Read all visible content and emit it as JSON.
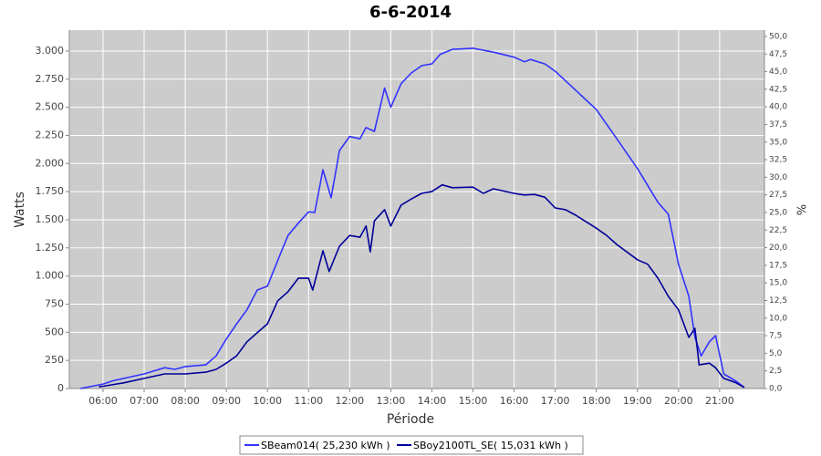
{
  "chart_data": {
    "type": "line",
    "title": "6-6-2014",
    "x_label": "Période",
    "y_label": "Watts",
    "y2_label": "%",
    "xlim": [
      5.18,
      22.09
    ],
    "xticks": [
      {
        "value": 6,
        "label": "06:00"
      },
      {
        "value": 7,
        "label": "07:00"
      },
      {
        "value": 8,
        "label": "08:00"
      },
      {
        "value": 9,
        "label": "09:00"
      },
      {
        "value": 10,
        "label": "10:00"
      },
      {
        "value": 11,
        "label": "11:00"
      },
      {
        "value": 12,
        "label": "12:00"
      },
      {
        "value": 13,
        "label": "13:00"
      },
      {
        "value": 14,
        "label": "14:00"
      },
      {
        "value": 15,
        "label": "15:00"
      },
      {
        "value": 16,
        "label": "16:00"
      },
      {
        "value": 17,
        "label": "17:00"
      },
      {
        "value": 18,
        "label": "18:00"
      },
      {
        "value": 19,
        "label": "19:00"
      },
      {
        "value": 20,
        "label": "20:00"
      },
      {
        "value": 21,
        "label": "21:00"
      }
    ],
    "ylim": [
      0,
      3186
    ],
    "yticks": [
      0,
      250,
      500,
      750,
      {
        "value": 1000,
        "label": "1.000"
      },
      {
        "value": 1250,
        "label": "1.250"
      },
      {
        "value": 1500,
        "label": "1.500"
      },
      {
        "value": 1750,
        "label": "1.750"
      },
      {
        "value": 2000,
        "label": "2.000"
      },
      {
        "value": 2250,
        "label": "2.250"
      },
      {
        "value": 2500,
        "label": "2.500"
      },
      {
        "value": 2750,
        "label": "2.750"
      },
      {
        "value": 3000,
        "label": "3.000"
      }
    ],
    "y2lim": [
      0,
      50.9
    ],
    "y2ticks": [
      {
        "value": 0,
        "label": "0,0"
      },
      {
        "value": 2.5,
        "label": "2,5"
      },
      {
        "value": 5,
        "label": "5,0"
      },
      {
        "value": 7.5,
        "label": "7,5"
      },
      {
        "value": 10,
        "label": "10,0"
      },
      {
        "value": 12.5,
        "label": "12,5"
      },
      {
        "value": 15,
        "label": "15,0"
      },
      {
        "value": 17.5,
        "label": "17,5"
      },
      {
        "value": 20,
        "label": "20,0"
      },
      {
        "value": 22.5,
        "label": "22,5"
      },
      {
        "value": 25,
        "label": "25,0"
      },
      {
        "value": 27.5,
        "label": "27,5"
      },
      {
        "value": 30,
        "label": "30,0"
      },
      {
        "value": 32.5,
        "label": "32,5"
      },
      {
        "value": 35,
        "label": "35,0"
      },
      {
        "value": 37.5,
        "label": "37,5"
      },
      {
        "value": 40,
        "label": "40,0"
      },
      {
        "value": 42.5,
        "label": "42,5"
      },
      {
        "value": 45,
        "label": "45,0"
      },
      {
        "value": 47.5,
        "label": "47,5"
      },
      {
        "value": 50,
        "label": "50,0"
      }
    ],
    "grid": true,
    "series": [
      {
        "name": "SBeam014( 25,230 kWh )",
        "color": "#3333ff",
        "x": [
          5.45,
          6.0,
          6.25,
          7.0,
          7.5,
          7.75,
          8.0,
          8.5,
          8.75,
          9.0,
          9.25,
          9.5,
          9.75,
          10.0,
          10.25,
          10.5,
          10.75,
          11.0,
          11.15,
          11.35,
          11.55,
          11.75,
          12.0,
          12.25,
          12.4,
          12.6,
          12.85,
          13.0,
          13.25,
          13.5,
          13.75,
          14.0,
          14.2,
          14.5,
          15.0,
          15.5,
          16.0,
          16.25,
          16.4,
          16.75,
          17.0,
          17.5,
          18.0,
          18.5,
          19.0,
          19.5,
          19.75,
          20.0,
          20.25,
          20.4,
          20.55,
          20.75,
          20.9,
          21.1,
          21.4,
          21.6
        ],
        "values": [
          0,
          40,
          70,
          130,
          185,
          170,
          195,
          210,
          290,
          440,
          575,
          700,
          875,
          910,
          1140,
          1360,
          1470,
          1570,
          1565,
          1945,
          1695,
          2115,
          2240,
          2220,
          2320,
          2285,
          2670,
          2500,
          2710,
          2805,
          2870,
          2885,
          2970,
          3015,
          3025,
          2990,
          2945,
          2905,
          2925,
          2885,
          2820,
          2650,
          2480,
          2220,
          1955,
          1655,
          1550,
          1105,
          820,
          455,
          290,
          415,
          470,
          130,
          65,
          10
        ]
      },
      {
        "name": "SBoy2100TL_SE( 15,031 kWh )",
        "color": "#000099",
        "x": [
          5.9,
          6.0,
          6.5,
          7.0,
          7.5,
          8.0,
          8.5,
          8.75,
          9.0,
          9.25,
          9.5,
          9.75,
          10.0,
          10.25,
          10.5,
          10.75,
          11.0,
          11.1,
          11.35,
          11.5,
          11.75,
          12.0,
          12.25,
          12.4,
          12.5,
          12.6,
          12.85,
          13.0,
          13.25,
          13.5,
          13.75,
          14.0,
          14.25,
          14.5,
          15.0,
          15.25,
          15.5,
          16.0,
          16.25,
          16.5,
          16.75,
          17.0,
          17.25,
          17.5,
          18.0,
          18.25,
          18.5,
          19.0,
          19.25,
          19.5,
          19.75,
          20.0,
          20.25,
          20.4,
          20.5,
          20.75,
          20.9,
          21.1,
          21.4,
          21.6
        ],
        "values": [
          15,
          20,
          50,
          90,
          130,
          130,
          145,
          170,
          225,
          290,
          415,
          495,
          575,
          780,
          860,
          980,
          980,
          875,
          1225,
          1040,
          1265,
          1360,
          1345,
          1445,
          1215,
          1490,
          1590,
          1445,
          1630,
          1685,
          1735,
          1750,
          1810,
          1785,
          1790,
          1735,
          1775,
          1735,
          1720,
          1725,
          1700,
          1605,
          1590,
          1540,
          1425,
          1360,
          1280,
          1145,
          1105,
          980,
          820,
          700,
          455,
          535,
          210,
          225,
          185,
          90,
          50,
          10
        ]
      }
    ]
  }
}
